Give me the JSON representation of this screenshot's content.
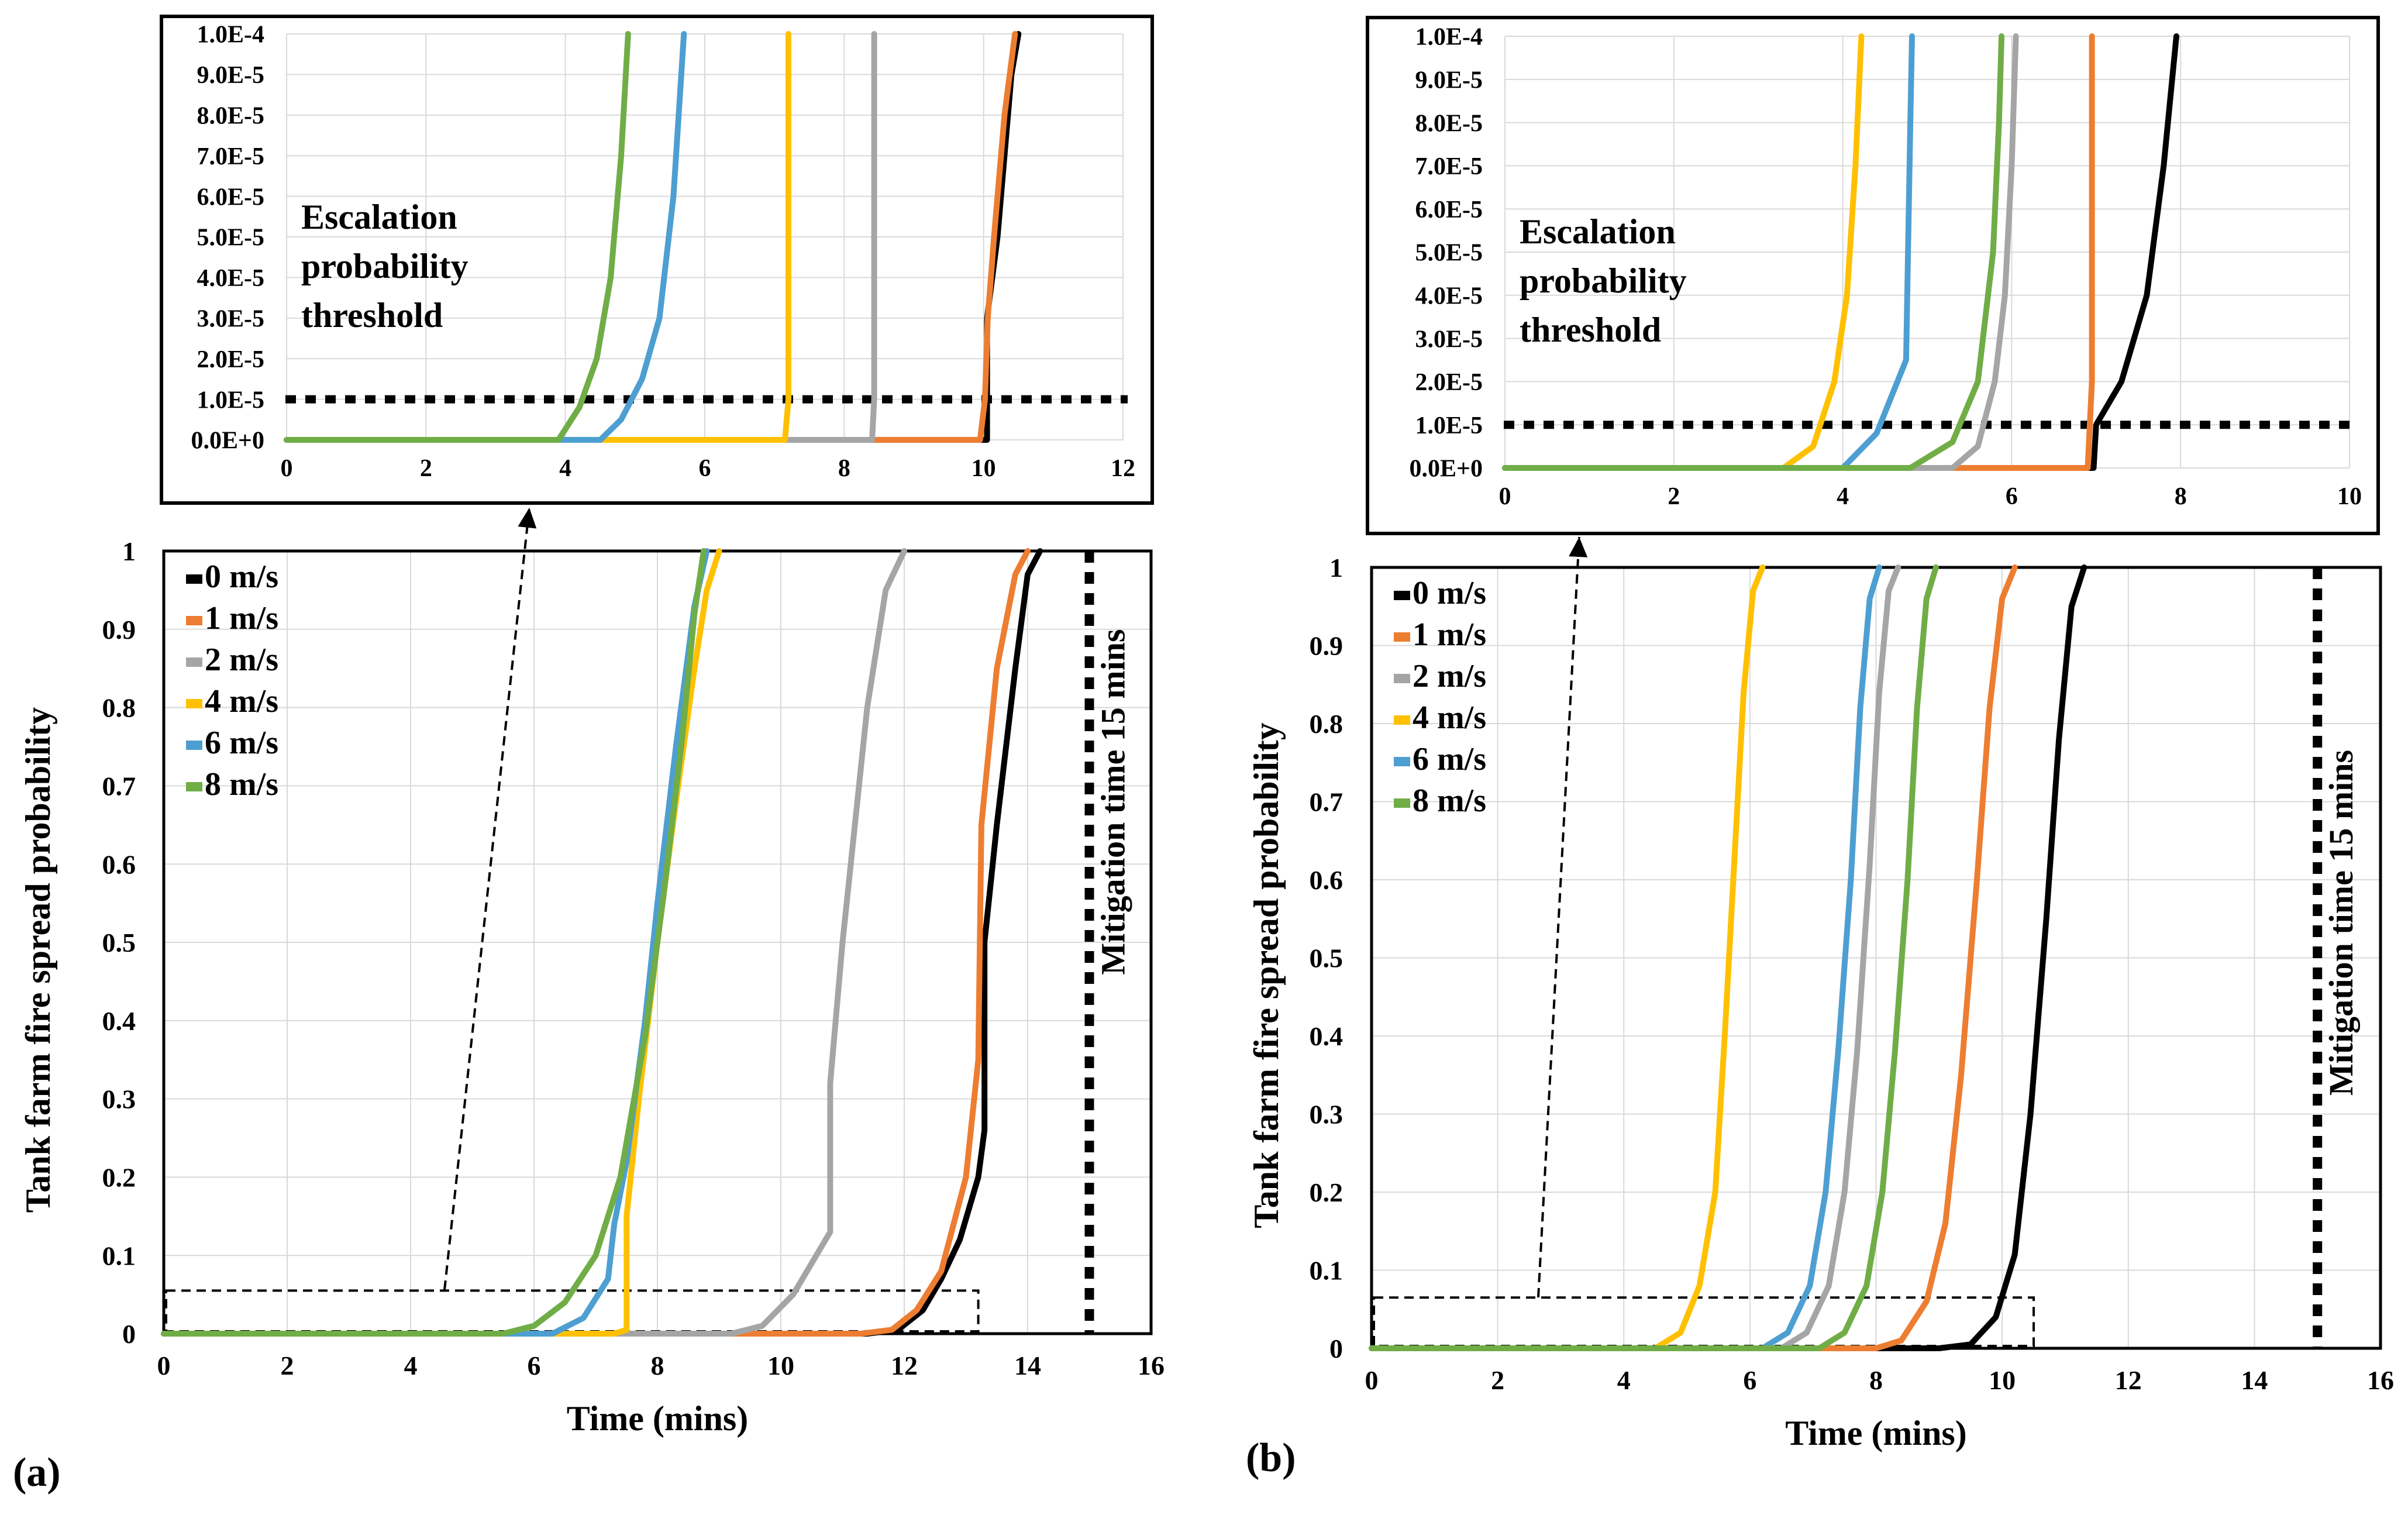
{
  "colors": {
    "0": "#000000",
    "1": "#ed7d31",
    "2": "#a5a5a5",
    "4": "#ffc000",
    "6": "#4e9fd1",
    "8": "#70ad47"
  },
  "chart_data": [
    {
      "id": "a_inset",
      "type": "line",
      "xlim": [
        0,
        12
      ],
      "ylim": [
        0,
        0.0001
      ],
      "xticks": [
        "0",
        "2",
        "4",
        "6",
        "8",
        "10",
        "12"
      ],
      "yticks": [
        "0.0E+0",
        "1.0E-5",
        "2.0E-5",
        "3.0E-5",
        "4.0E-5",
        "5.0E-5",
        "6.0E-5",
        "7.0E-5",
        "8.0E-5",
        "9.0E-5",
        "1.0E-4"
      ],
      "grid": true,
      "threshold": 1e-05,
      "annotation_lines": [
        "Escalation",
        "probability",
        "threshold"
      ],
      "series": [
        {
          "name": "0 m/s",
          "key": "0",
          "x": [
            0,
            10.05,
            10.05,
            10.2,
            10.3,
            10.4,
            10.5
          ],
          "y": [
            0,
            0,
            3e-05,
            5e-05,
            7e-05,
            9e-05,
            0.0001
          ]
        },
        {
          "name": "1 m/s",
          "key": "1",
          "x": [
            0,
            9.95,
            10.02,
            10.06,
            10.15,
            10.3,
            10.45
          ],
          "y": [
            0,
            0,
            1e-05,
            3e-05,
            5e-05,
            8e-05,
            0.0001
          ]
        },
        {
          "name": "2 m/s",
          "key": "2",
          "x": [
            0,
            8.4,
            8.43,
            8.43
          ],
          "y": [
            0,
            0,
            1e-05,
            0.0001
          ]
        },
        {
          "name": "4 m/s",
          "key": "4",
          "x": [
            0,
            7.15,
            7.2,
            7.2
          ],
          "y": [
            0,
            0,
            1e-05,
            0.0001
          ]
        },
        {
          "name": "6 m/s",
          "key": "6",
          "x": [
            0,
            4.5,
            4.8,
            5.1,
            5.35,
            5.55,
            5.7
          ],
          "y": [
            0,
            0,
            5e-06,
            1.5e-05,
            3e-05,
            6e-05,
            0.0001
          ]
        },
        {
          "name": "8 m/s",
          "key": "8",
          "x": [
            0,
            3.9,
            4.2,
            4.45,
            4.65,
            4.8,
            4.9
          ],
          "y": [
            0,
            0,
            8e-06,
            2e-05,
            4e-05,
            7e-05,
            0.0001
          ]
        }
      ]
    },
    {
      "id": "a_main",
      "type": "line",
      "title": "(a)",
      "xlabel": "Time (mins)",
      "ylabel": "Tank farm fire spread probability",
      "xlim": [
        0,
        16
      ],
      "ylim": [
        0,
        1
      ],
      "xticks": [
        "0",
        "2",
        "4",
        "6",
        "8",
        "10",
        "12",
        "14",
        "16"
      ],
      "yticks": [
        "0",
        "0.1",
        "0.2",
        "0.3",
        "0.4",
        "0.5",
        "0.6",
        "0.7",
        "0.8",
        "0.9",
        "1"
      ],
      "grid": true,
      "mitigation": {
        "x": 15,
        "label": "Mitigation time 15 mins"
      },
      "zoom_box": {
        "x": [
          0,
          13.2
        ],
        "y": [
          0,
          0.055
        ]
      },
      "legend_position": "top-left",
      "series": [
        {
          "name": "0 m/s",
          "key": "0",
          "x": [
            0,
            11.4,
            11.9,
            12.3,
            12.6,
            12.9,
            13.2,
            13.3,
            13.3,
            13.5,
            13.8,
            14.0,
            14.2
          ],
          "y": [
            0,
            0,
            0.005,
            0.03,
            0.07,
            0.12,
            0.2,
            0.26,
            0.5,
            0.65,
            0.85,
            0.97,
            1.0
          ]
        },
        {
          "name": "1 m/s",
          "key": "1",
          "x": [
            0,
            11.3,
            11.8,
            12.2,
            12.6,
            13.0,
            13.2,
            13.25,
            13.5,
            13.8,
            14.0
          ],
          "y": [
            0,
            0,
            0.005,
            0.03,
            0.08,
            0.2,
            0.35,
            0.65,
            0.85,
            0.97,
            1.0
          ]
        },
        {
          "name": "2 m/s",
          "key": "2",
          "x": [
            0,
            9.2,
            9.7,
            10.2,
            10.8,
            10.8,
            11.0,
            11.2,
            11.4,
            11.7,
            12.0
          ],
          "y": [
            0,
            0,
            0.01,
            0.05,
            0.13,
            0.32,
            0.5,
            0.65,
            0.8,
            0.95,
            1.0
          ]
        },
        {
          "name": "4 m/s",
          "key": "4",
          "x": [
            0,
            7.3,
            7.5,
            7.5,
            7.7,
            8.0,
            8.3,
            8.6,
            8.8,
            9.0
          ],
          "y": [
            0,
            0,
            0.005,
            0.15,
            0.3,
            0.5,
            0.68,
            0.85,
            0.95,
            1.0
          ]
        },
        {
          "name": "6 m/s",
          "key": "6",
          "x": [
            0,
            6.3,
            6.8,
            7.2,
            7.3,
            7.5,
            7.8,
            8.0,
            8.3,
            8.6,
            8.8
          ],
          "y": [
            0,
            0,
            0.02,
            0.07,
            0.14,
            0.22,
            0.4,
            0.55,
            0.75,
            0.93,
            1.0
          ]
        },
        {
          "name": "8 m/s",
          "key": "8",
          "x": [
            0,
            5.5,
            6.0,
            6.5,
            7.0,
            7.4,
            7.8,
            8.1,
            8.4,
            8.6,
            8.75
          ],
          "y": [
            0,
            0,
            0.01,
            0.04,
            0.1,
            0.2,
            0.38,
            0.56,
            0.76,
            0.92,
            1.0
          ]
        }
      ]
    },
    {
      "id": "b_inset",
      "type": "line",
      "xlim": [
        0,
        10
      ],
      "ylim": [
        0,
        0.0001
      ],
      "xticks": [
        "0",
        "2",
        "4",
        "6",
        "8",
        "10"
      ],
      "yticks": [
        "0.0E+0",
        "1.0E-5",
        "2.0E-5",
        "3.0E-5",
        "4.0E-5",
        "5.0E-5",
        "6.0E-5",
        "7.0E-5",
        "8.0E-5",
        "9.0E-5",
        "1.0E-4"
      ],
      "grid": true,
      "threshold": 1e-05,
      "annotation_lines": [
        "Escalation",
        "probability",
        "threshold"
      ],
      "series": [
        {
          "name": "0 m/s",
          "key": "0",
          "x": [
            0,
            6.97,
            7.0,
            7.3,
            7.6,
            7.8,
            7.95
          ],
          "y": [
            0,
            0,
            1e-05,
            2e-05,
            4e-05,
            7e-05,
            0.0001
          ]
        },
        {
          "name": "1 m/s",
          "key": "1",
          "x": [
            0,
            6.9,
            6.95,
            6.95
          ],
          "y": [
            0,
            0,
            2e-05,
            0.0001
          ]
        },
        {
          "name": "2 m/s",
          "key": "2",
          "x": [
            0,
            5.3,
            5.6,
            5.8,
            5.92,
            6.0,
            6.05
          ],
          "y": [
            0,
            0,
            5e-06,
            2e-05,
            4e-05,
            7e-05,
            0.0001
          ]
        },
        {
          "name": "4 m/s",
          "key": "4",
          "x": [
            0,
            3.3,
            3.65,
            3.9,
            4.05,
            4.15,
            4.22
          ],
          "y": [
            0,
            0,
            5e-06,
            2e-05,
            4e-05,
            7e-05,
            0.0001
          ]
        },
        {
          "name": "6 m/s",
          "key": "6",
          "x": [
            0,
            4.0,
            4.4,
            4.75,
            4.8,
            4.82
          ],
          "y": [
            0,
            0,
            8e-06,
            2.5e-05,
            8e-05,
            0.0001
          ]
        },
        {
          "name": "8 m/s",
          "key": "8",
          "x": [
            0,
            4.8,
            5.3,
            5.6,
            5.78,
            5.85,
            5.88
          ],
          "y": [
            0,
            0,
            6e-06,
            2e-05,
            5e-05,
            8e-05,
            0.0001
          ]
        }
      ]
    },
    {
      "id": "b_main",
      "type": "line",
      "title": "(b)",
      "xlabel": "Time (mins)",
      "ylabel": "Tank farm fire spread probability",
      "xlim": [
        0,
        16
      ],
      "ylim": [
        0,
        1
      ],
      "xticks": [
        "0",
        "2",
        "4",
        "6",
        "8",
        "10",
        "12",
        "14",
        "16"
      ],
      "yticks": [
        "0",
        "0.1",
        "0.2",
        "0.3",
        "0.4",
        "0.5",
        "0.6",
        "0.7",
        "0.8",
        "0.9",
        "1"
      ],
      "grid": true,
      "mitigation": {
        "x": 15,
        "label": "Mitigation time 15 mins"
      },
      "zoom_box": {
        "x": [
          0,
          10.5
        ],
        "y": [
          0,
          0.065
        ]
      },
      "legend_position": "top-left",
      "series": [
        {
          "name": "0 m/s",
          "key": "0",
          "x": [
            0,
            9.0,
            9.5,
            9.9,
            10.2,
            10.45,
            10.7,
            10.9,
            11.1,
            11.3
          ],
          "y": [
            0,
            0,
            0.005,
            0.04,
            0.12,
            0.3,
            0.55,
            0.78,
            0.95,
            1.0
          ]
        },
        {
          "name": "1 m/s",
          "key": "1",
          "x": [
            0,
            8.0,
            8.4,
            8.8,
            9.1,
            9.35,
            9.6,
            9.8,
            10.0,
            10.2
          ],
          "y": [
            0,
            0,
            0.01,
            0.06,
            0.16,
            0.35,
            0.6,
            0.82,
            0.96,
            1.0
          ]
        },
        {
          "name": "2 m/s",
          "key": "2",
          "x": [
            0,
            6.5,
            6.9,
            7.25,
            7.5,
            7.7,
            7.9,
            8.05,
            8.2,
            8.35
          ],
          "y": [
            0,
            0,
            0.02,
            0.08,
            0.2,
            0.38,
            0.62,
            0.84,
            0.97,
            1.0
          ]
        },
        {
          "name": "4 m/s",
          "key": "4",
          "x": [
            0,
            4.5,
            4.9,
            5.2,
            5.45,
            5.6,
            5.75,
            5.9,
            6.05,
            6.2
          ],
          "y": [
            0,
            0,
            0.02,
            0.08,
            0.2,
            0.4,
            0.62,
            0.84,
            0.97,
            1.0
          ]
        },
        {
          "name": "6 m/s",
          "key": "6",
          "x": [
            0,
            6.2,
            6.6,
            6.95,
            7.2,
            7.4,
            7.6,
            7.75,
            7.9,
            8.05
          ],
          "y": [
            0,
            0,
            0.02,
            0.08,
            0.2,
            0.38,
            0.6,
            0.82,
            0.96,
            1.0
          ]
        },
        {
          "name": "8 m/s",
          "key": "8",
          "x": [
            0,
            7.1,
            7.5,
            7.85,
            8.1,
            8.3,
            8.5,
            8.65,
            8.8,
            8.95
          ],
          "y": [
            0,
            0,
            0.02,
            0.08,
            0.2,
            0.38,
            0.6,
            0.82,
            0.96,
            1.0
          ]
        }
      ]
    }
  ]
}
